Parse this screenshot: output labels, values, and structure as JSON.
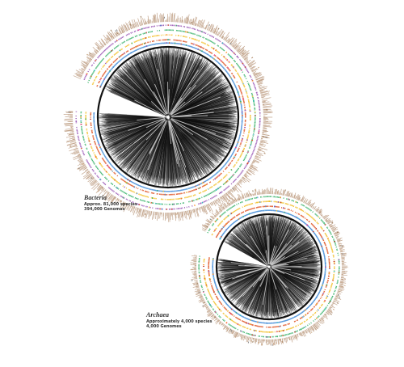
{
  "trees": [
    {
      "id": "bacteria",
      "name": "Bacteria",
      "species": "Approx. 81,000 species",
      "genomes": "394,000 Genomes"
    },
    {
      "id": "archaea",
      "name": "Archaea",
      "species": "Approximately 4,000 species",
      "genomes": "4,000 Genomes"
    }
  ],
  "colors": {
    "branches": "#111111",
    "ring_palette": [
      "#4a90d9",
      "#e05a2b",
      "#f2c12e",
      "#3bb36b",
      "#9b59b6",
      "#e84393",
      "#2ec4c4",
      "#ff8c1a",
      "#7ec8e3",
      "#c0392b"
    ],
    "outer_bars": [
      "#b08a6a",
      "#c9a27e",
      "#9c7b5b",
      "#d4b89a",
      "#8a8a8a"
    ]
  }
}
